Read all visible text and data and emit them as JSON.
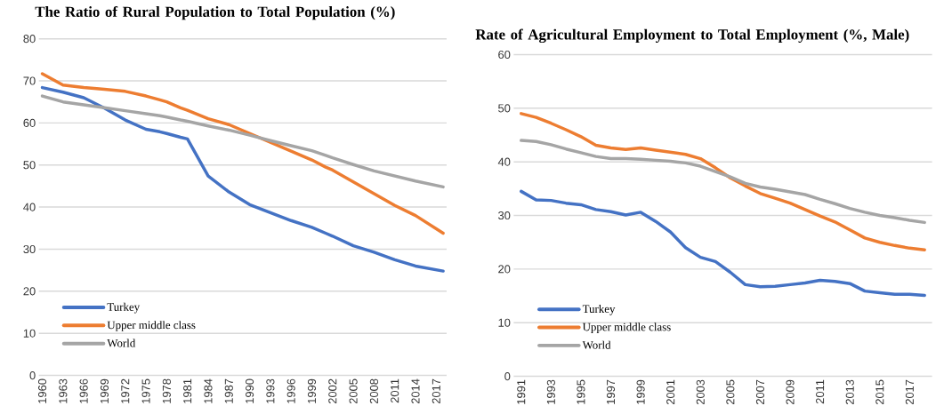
{
  "chart_data": [
    {
      "type": "line",
      "title": "The Ratio of Rural Population to Total Population (%)",
      "x": [
        1960,
        1963,
        1966,
        1969,
        1972,
        1975,
        1977,
        1978,
        1980,
        1981,
        1984,
        1987,
        1990,
        1993,
        1996,
        1999,
        2001,
        2002,
        2005,
        2008,
        2011,
        2014,
        2018
      ],
      "series": [
        {
          "name": "Turkey",
          "color": "#4472c4",
          "values": [
            68.4,
            67.3,
            66.0,
            63.5,
            60.7,
            58.5,
            57.9,
            57.5,
            56.6,
            56.2,
            47.4,
            43.6,
            40.6,
            38.7,
            36.8,
            35.2,
            33.8,
            33.1,
            30.8,
            29.3,
            27.5,
            26.0,
            24.8
          ]
        },
        {
          "name": "Upper middle class",
          "color": "#ed7d31",
          "values": [
            71.7,
            69.0,
            68.4,
            68.0,
            67.5,
            66.4,
            65.5,
            65.0,
            63.6,
            63.0,
            61.0,
            59.6,
            57.5,
            55.4,
            53.3,
            51.2,
            49.5,
            48.8,
            46.0,
            43.2,
            40.4,
            38.0,
            33.8
          ]
        },
        {
          "name": "World",
          "color": "#a5a5a5",
          "values": [
            66.4,
            65.0,
            64.3,
            63.6,
            62.9,
            62.2,
            61.7,
            61.4,
            60.7,
            60.4,
            59.3,
            58.3,
            57.1,
            55.8,
            54.6,
            53.4,
            52.3,
            51.7,
            50.1,
            48.6,
            47.4,
            46.2,
            44.8
          ]
        }
      ],
      "xlim": [
        1959.5,
        2018.5
      ],
      "ylim": [
        0,
        80
      ],
      "xticks": [
        1960,
        1963,
        1966,
        1969,
        1972,
        1975,
        1978,
        1981,
        1984,
        1987,
        1990,
        1993,
        1996,
        1999,
        2002,
        2005,
        2008,
        2011,
        2014,
        2017
      ],
      "yticks": [
        0,
        10,
        20,
        30,
        40,
        50,
        60,
        70,
        80
      ],
      "grid": "y",
      "legend": "bottom left",
      "line_style": "solid",
      "marker": "none"
    },
    {
      "type": "line",
      "title": "Rate of Agricultural Employment to Total Employment (%, Male)",
      "x": [
        1991,
        1992,
        1993,
        1994,
        1995,
        1996,
        1997,
        1998,
        1999,
        2000,
        2001,
        2002,
        2003,
        2004,
        2005,
        2006,
        2007,
        2008,
        2009,
        2010,
        2011,
        2012,
        2013,
        2014,
        2015,
        2016,
        2017,
        2018
      ],
      "series": [
        {
          "name": "Turkey",
          "color": "#4472c4",
          "values": [
            34.5,
            32.9,
            32.8,
            32.3,
            32.0,
            31.1,
            30.7,
            30.1,
            30.6,
            28.9,
            26.9,
            24.0,
            22.2,
            21.4,
            19.4,
            17.1,
            16.7,
            16.8,
            17.1,
            17.4,
            17.9,
            17.7,
            17.3,
            15.9,
            15.6,
            15.3,
            15.3,
            15.1
          ]
        },
        {
          "name": "Upper middle class",
          "color": "#ed7d31",
          "values": [
            49.0,
            48.3,
            47.2,
            46.0,
            44.7,
            43.1,
            42.6,
            42.3,
            42.6,
            42.2,
            41.8,
            41.4,
            40.6,
            38.9,
            37.0,
            35.5,
            34.1,
            33.2,
            32.3,
            31.1,
            29.9,
            28.8,
            27.3,
            25.8,
            25.0,
            24.4,
            23.9,
            23.6
          ]
        },
        {
          "name": "World",
          "color": "#a5a5a5",
          "values": [
            44.0,
            43.8,
            43.2,
            42.4,
            41.7,
            41.0,
            40.6,
            40.6,
            40.5,
            40.3,
            40.1,
            39.8,
            39.2,
            38.2,
            37.2,
            36.0,
            35.3,
            34.9,
            34.4,
            33.9,
            33.0,
            32.2,
            31.3,
            30.6,
            30.0,
            29.6,
            29.1,
            28.7
          ]
        }
      ],
      "xlim": [
        1990.5,
        2018.5
      ],
      "ylim": [
        0,
        60
      ],
      "xticks": [
        1991,
        1993,
        1995,
        1997,
        1999,
        2001,
        2003,
        2005,
        2007,
        2009,
        2011,
        2013,
        2015,
        2017
      ],
      "yticks": [
        0,
        10,
        20,
        30,
        40,
        50,
        60
      ],
      "grid": "y",
      "legend": "bottom left",
      "line_style": "solid",
      "marker": "none"
    }
  ]
}
